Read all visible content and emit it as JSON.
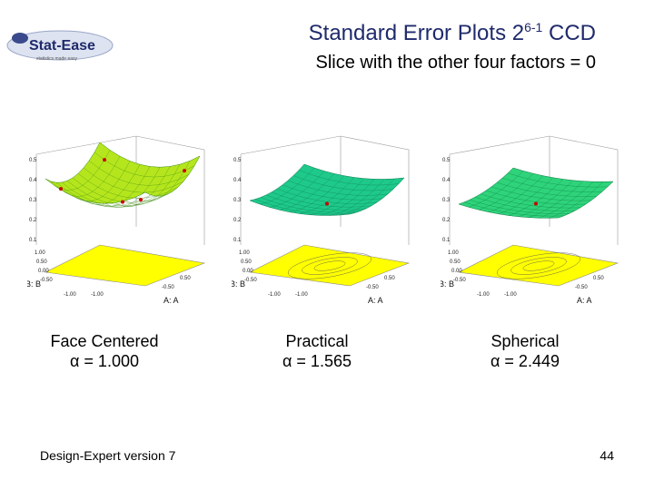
{
  "header": {
    "logo_text": "Stat-Ease",
    "logo_tagline": "statistics made easy",
    "title_main": "Standard Error Plots 2",
    "title_sup": "6-1",
    "title_end": " CCD",
    "subtitle": "Slice with the other four factors = 0"
  },
  "colors": {
    "title": "#1f2a6b",
    "contour_plane": "#ffff00",
    "surface_face": "#b5e61d",
    "surface_practical": "#1ec98a",
    "surface_spherical": "#2ed37a"
  },
  "plots": [
    {
      "caption_design": "Face Centered",
      "caption_alpha": "α = 1.000",
      "z_ticks": [
        "0.5",
        "0.4",
        "0.3",
        "0.2",
        "0.1"
      ],
      "y_axis_label": "B: B",
      "x_axis_label": "A: A",
      "ab_ticks": [
        "1.00",
        "0.50",
        "0.00",
        "-0.50",
        "-1.00",
        "-1.00",
        "-0.50",
        "0.50",
        "1.00"
      ]
    },
    {
      "caption_design": "Practical",
      "caption_alpha": "α = 1.565",
      "z_ticks": [
        "0.5",
        "0.4",
        "0.3",
        "0.2",
        "0.1"
      ],
      "y_axis_label": "B: B",
      "x_axis_label": "A: A",
      "ab_ticks": [
        "1.00",
        "0.50",
        "0.00",
        "-0.50",
        "-1.00",
        "-1.00",
        "-0.50",
        "0.50",
        "1.00"
      ]
    },
    {
      "caption_design": "Spherical",
      "caption_alpha": "α = 2.449",
      "z_ticks": [
        "0.5",
        "0.4",
        "0.3",
        "0.2",
        "0.1"
      ],
      "y_axis_label": "B: B",
      "x_axis_label": "A: A",
      "ab_ticks": [
        "1.00",
        "0.50",
        "0.00",
        "-0.50",
        "-1.00",
        "-1.00",
        "-0.50",
        "0.50",
        "1.00"
      ]
    }
  ],
  "footer": {
    "software": "Design-Expert version 7",
    "page_number": "44"
  }
}
